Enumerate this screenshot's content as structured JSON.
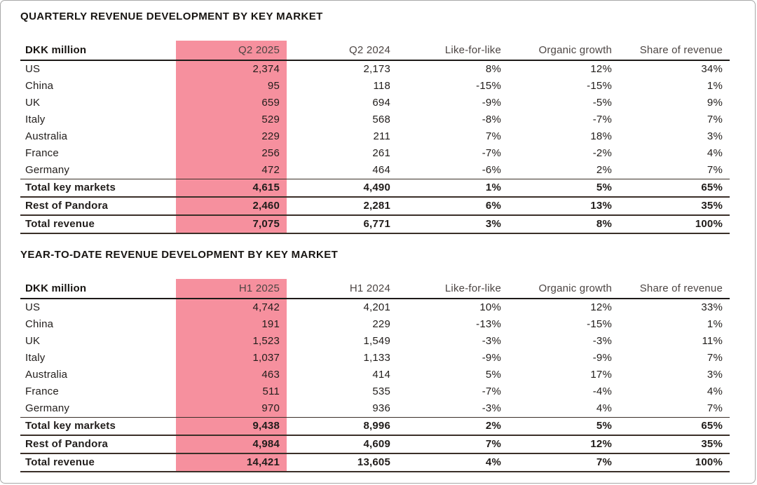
{
  "theme": {
    "highlight_pink": "#F6909E",
    "rule_dark": "#1d1a18",
    "rule_total": "#3a2f28",
    "text_primary": "#211d1b",
    "text_header": "#4c4543",
    "page_border": "#a8a8a8"
  },
  "tables": [
    {
      "title": "QUARTERLY REVENUE DEVELOPMENT BY KEY MARKET",
      "unit_label": "DKK million",
      "columns": [
        "DKK million",
        "Q2 2025",
        "Q2 2024",
        "Like-for-like",
        "Organic growth",
        "Share of revenue"
      ],
      "highlighted_column": "Q2 2025",
      "highlight_col_index": 1,
      "rows": [
        {
          "label": "US",
          "type": "market",
          "values": [
            "2,374",
            "2,173",
            "8%",
            "12%",
            "34%"
          ]
        },
        {
          "label": "China",
          "type": "market",
          "values": [
            "95",
            "118",
            "-15%",
            "-15%",
            "1%"
          ]
        },
        {
          "label": "UK",
          "type": "market",
          "values": [
            "659",
            "694",
            "-9%",
            "-5%",
            "9%"
          ]
        },
        {
          "label": "Italy",
          "type": "market",
          "values": [
            "529",
            "568",
            "-8%",
            "-7%",
            "7%"
          ]
        },
        {
          "label": "Australia",
          "type": "market",
          "values": [
            "229",
            "211",
            "7%",
            "18%",
            "3%"
          ]
        },
        {
          "label": "France",
          "type": "market",
          "values": [
            "256",
            "261",
            "-7%",
            "-2%",
            "4%"
          ]
        },
        {
          "label": "Germany",
          "type": "market",
          "values": [
            "472",
            "464",
            "-6%",
            "2%",
            "7%"
          ]
        },
        {
          "label": "Total key markets",
          "type": "total",
          "values": [
            "4,615",
            "4,490",
            "1%",
            "5%",
            "65%"
          ]
        },
        {
          "label": "Rest of Pandora",
          "type": "total",
          "values": [
            "2,460",
            "2,281",
            "6%",
            "13%",
            "35%"
          ]
        },
        {
          "label": "Total revenue",
          "type": "total",
          "values": [
            "7,075",
            "6,771",
            "3%",
            "8%",
            "100%"
          ]
        }
      ]
    },
    {
      "title": "YEAR-TO-DATE REVENUE DEVELOPMENT BY KEY MARKET",
      "unit_label": "DKK million",
      "columns": [
        "DKK million",
        "H1 2025",
        "H1 2024",
        "Like-for-like",
        "Organic growth",
        "Share of revenue"
      ],
      "highlighted_column": "H1 2025",
      "highlight_col_index": 1,
      "rows": [
        {
          "label": "US",
          "type": "market",
          "values": [
            "4,742",
            "4,201",
            "10%",
            "12%",
            "33%"
          ]
        },
        {
          "label": "China",
          "type": "market",
          "values": [
            "191",
            "229",
            "-13%",
            "-15%",
            "1%"
          ]
        },
        {
          "label": "UK",
          "type": "market",
          "values": [
            "1,523",
            "1,549",
            "-3%",
            "-3%",
            "11%"
          ]
        },
        {
          "label": "Italy",
          "type": "market",
          "values": [
            "1,037",
            "1,133",
            "-9%",
            "-9%",
            "7%"
          ]
        },
        {
          "label": "Australia",
          "type": "market",
          "values": [
            "463",
            "414",
            "5%",
            "17%",
            "3%"
          ]
        },
        {
          "label": "France",
          "type": "market",
          "values": [
            "511",
            "535",
            "-7%",
            "-4%",
            "4%"
          ]
        },
        {
          "label": "Germany",
          "type": "market",
          "values": [
            "970",
            "936",
            "-3%",
            "4%",
            "7%"
          ]
        },
        {
          "label": "Total key markets",
          "type": "total",
          "values": [
            "9,438",
            "8,996",
            "2%",
            "5%",
            "65%"
          ]
        },
        {
          "label": "Rest of Pandora",
          "type": "total",
          "values": [
            "4,984",
            "4,609",
            "7%",
            "12%",
            "35%"
          ]
        },
        {
          "label": "Total revenue",
          "type": "total",
          "values": [
            "14,421",
            "13,605",
            "4%",
            "7%",
            "100%"
          ]
        }
      ]
    }
  ]
}
